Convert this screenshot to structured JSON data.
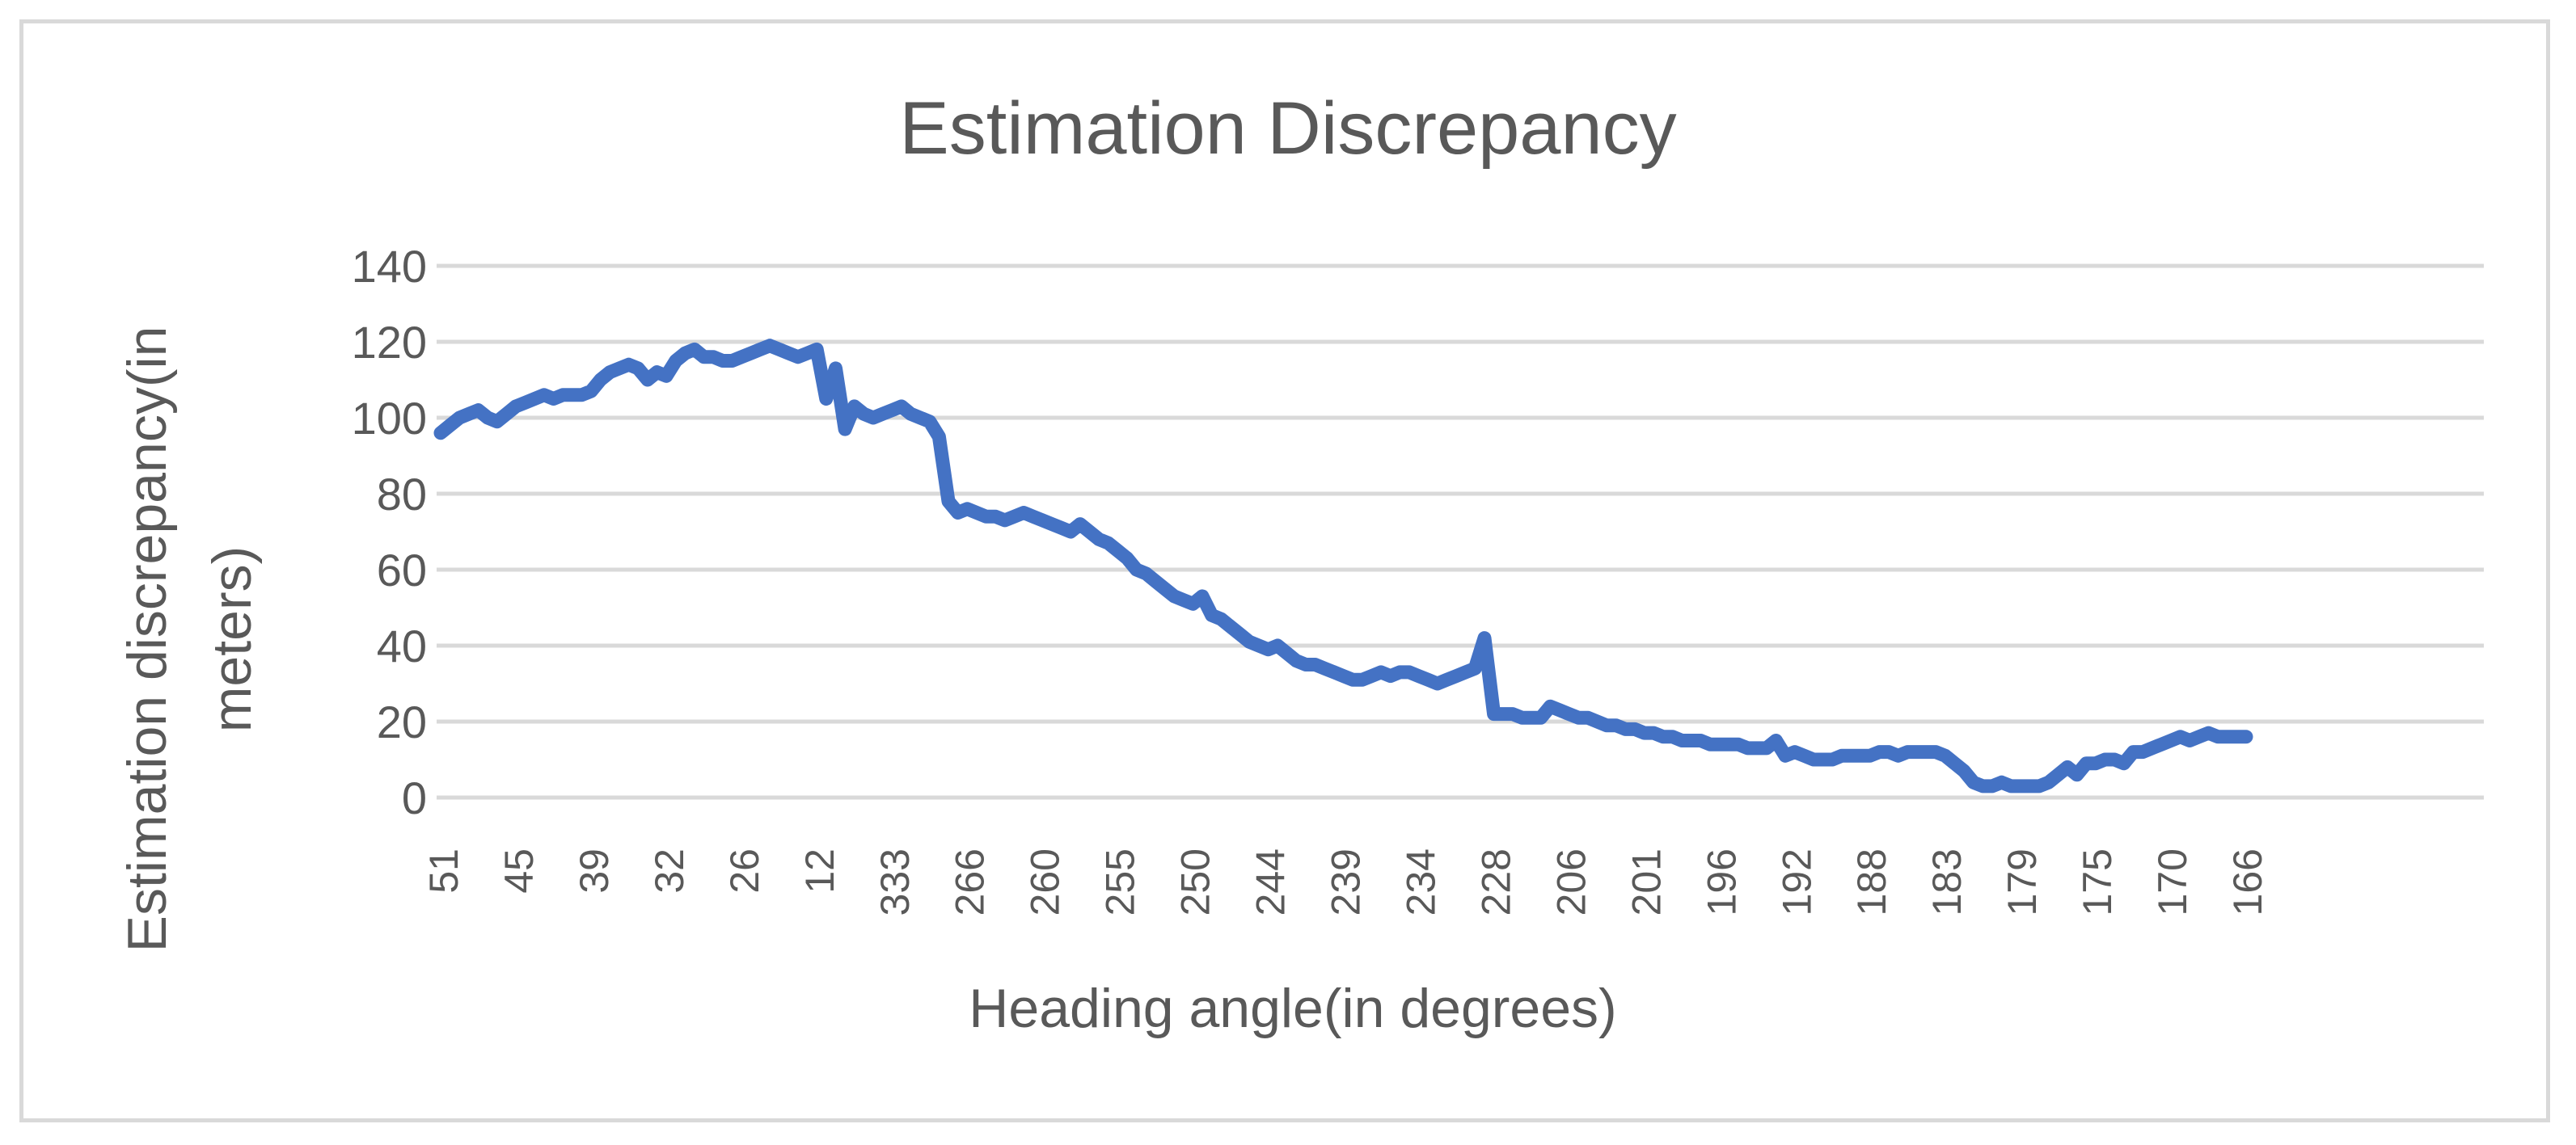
{
  "chart_data": {
    "type": "line",
    "title": "Estimation Discrepancy",
    "xlabel": "Heading angle(in degrees)",
    "ylabel": [
      "Estimation discrepancy(in",
      "meters)"
    ],
    "ylim": [
      0,
      140
    ],
    "yticks": [
      "0",
      "20",
      "40",
      "60",
      "80",
      "100",
      "120",
      "140"
    ],
    "grid": true,
    "legend": "none",
    "x_tick_labels": [
      "51",
      "45",
      "39",
      "32",
      "26",
      "12",
      "333",
      "266",
      "260",
      "255",
      "250",
      "244",
      "239",
      "234",
      "228",
      "206",
      "201",
      "196",
      "192",
      "188",
      "183",
      "179",
      "175",
      "170",
      "166"
    ],
    "series": [
      {
        "name": "Estimation discrepancy",
        "color": "#4472c4",
        "values": [
          96,
          98,
          100,
          101,
          102,
          100,
          99,
          101,
          103,
          104,
          105,
          106,
          105,
          106,
          106,
          106,
          107,
          110,
          112,
          113,
          114,
          113,
          110,
          112,
          111,
          115,
          117,
          118,
          116,
          116,
          115,
          115,
          116,
          117,
          118,
          119,
          118,
          117,
          116,
          117,
          118,
          105,
          113,
          97,
          103,
          101,
          100,
          101,
          102,
          103,
          101,
          100,
          99,
          95,
          78,
          75,
          76,
          75,
          74,
          74,
          73,
          74,
          75,
          74,
          73,
          72,
          71,
          70,
          72,
          70,
          68,
          67,
          65,
          63,
          60,
          59,
          57,
          55,
          53,
          52,
          51,
          53,
          48,
          47,
          45,
          43,
          41,
          40,
          39,
          40,
          38,
          36,
          35,
          35,
          34,
          33,
          32,
          31,
          31,
          32,
          33,
          32,
          33,
          33,
          32,
          31,
          30,
          31,
          32,
          33,
          34,
          42,
          22,
          22,
          22,
          21,
          21,
          21,
          24,
          23,
          22,
          21,
          21,
          20,
          19,
          19,
          18,
          18,
          17,
          17,
          16,
          16,
          15,
          15,
          15,
          14,
          14,
          14,
          14,
          13,
          13,
          13,
          15,
          11,
          12,
          11,
          10,
          10,
          10,
          11,
          11,
          11,
          11,
          12,
          12,
          11,
          12,
          12,
          12,
          12,
          11,
          9,
          7,
          4,
          3,
          3,
          4,
          3,
          3,
          3,
          3,
          4,
          6,
          8,
          6,
          9,
          9,
          10,
          10,
          9,
          12,
          12,
          13,
          14,
          15,
          16,
          15,
          16,
          17,
          16,
          16,
          16,
          16
        ]
      }
    ]
  }
}
